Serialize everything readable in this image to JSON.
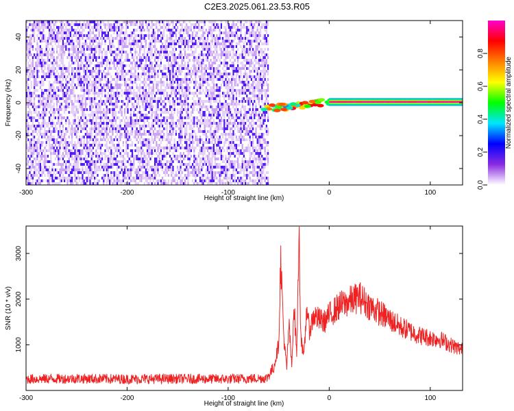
{
  "title": "C2E3.2025.061.23.53.R05",
  "chart_data": [
    {
      "type": "heatmap",
      "xlabel": "Height of straight line (km)",
      "ylabel": "Frequency (Hz)",
      "xlim": [
        -300,
        132
      ],
      "ylim": [
        -50,
        50
      ],
      "x_ticks": [
        -300,
        -200,
        -100,
        0,
        100
      ],
      "x_tick_labels": [
        "-300",
        "-200",
        "-100",
        "0",
        "100"
      ],
      "y_ticks": [
        -40,
        -20,
        0,
        20,
        40
      ],
      "y_tick_labels": [
        "-40",
        "-20",
        "0",
        "20",
        "40"
      ],
      "colorbar": {
        "label": "Normalized spectral amplitude",
        "range": [
          0.0,
          1.0
        ],
        "ticks": [
          0.0,
          0.2,
          0.4,
          0.6,
          0.8
        ],
        "tick_labels": [
          "0.0",
          "0.2",
          "0.4",
          "0.6",
          "0.8"
        ],
        "colormap": [
          "#ffffff",
          "#8a2be2",
          "#0000ff",
          "#00e5ff",
          "#00ff00",
          "#ffff00",
          "#ff8000",
          "#ff0000",
          "#ff00cc"
        ]
      },
      "regions": [
        {
          "name": "noise",
          "x_range": [
            -300,
            -60
          ],
          "freq_range": [
            -50,
            50
          ],
          "amplitude": 0.15
        },
        {
          "name": "signal-onset",
          "x_range": [
            -65,
            5
          ],
          "freq_range": [
            -6,
            3
          ],
          "amplitude": 0.7
        },
        {
          "name": "steady-line",
          "x_range": [
            0,
            132
          ],
          "freq": 0.5,
          "amplitude": 0.95
        }
      ],
      "grid": false
    },
    {
      "type": "line",
      "xlabel": "Height of straight line (km)",
      "ylabel": "SNR (10 * v/v)",
      "xlim": [
        -300,
        132
      ],
      "ylim": [
        0,
        3600
      ],
      "x_ticks": [
        -300,
        -200,
        -100,
        0,
        100
      ],
      "x_tick_labels": [
        "-300",
        "-200",
        "-100",
        "0",
        "100"
      ],
      "y_ticks": [
        1000,
        2000,
        3000
      ],
      "y_tick_labels": [
        "1000",
        "2000",
        "3000"
      ],
      "series": [
        {
          "color": "#ee2222",
          "x": [
            -300,
            -250,
            -200,
            -150,
            -100,
            -62,
            -55,
            -50,
            -48,
            -45,
            -42,
            -40,
            -37,
            -35,
            -32,
            -30,
            -28,
            -25,
            -22,
            -20,
            -15,
            -10,
            -5,
            0,
            10,
            20,
            30,
            40,
            50,
            60,
            70,
            80,
            90,
            100,
            110,
            120,
            130
          ],
          "y": [
            250,
            260,
            250,
            255,
            250,
            270,
            500,
            1000,
            2900,
            1200,
            450,
            1500,
            500,
            1900,
            800,
            3500,
            1200,
            700,
            1900,
            1300,
            1650,
            1550,
            1500,
            1650,
            1850,
            1950,
            2050,
            1850,
            1700,
            1550,
            1400,
            1300,
            1200,
            1150,
            1120,
            1000,
            900
          ]
        }
      ],
      "grid": false
    }
  ]
}
